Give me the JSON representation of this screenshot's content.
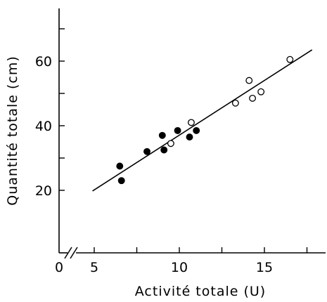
{
  "chart_data": {
    "type": "scatter",
    "title": "",
    "xlabel": "Activité totale  (U)",
    "ylabel": "Quantité totale  (cm)",
    "xlim": [
      4,
      19.5
    ],
    "ylim": [
      11,
      79
    ],
    "x_axis_break": true,
    "x_origin_label": "0",
    "xticks": [
      5,
      10,
      15
    ],
    "yticks": [
      20,
      40,
      60
    ],
    "x_minor_ticks": [
      7.5,
      12.5,
      17.5
    ],
    "y_minor_ticks": [
      30,
      50,
      70
    ],
    "grid": false,
    "series": [
      {
        "marker": "filled-circle",
        "points": [
          {
            "x": 6.5,
            "y": 27.5
          },
          {
            "x": 6.6,
            "y": 23.0
          },
          {
            "x": 8.1,
            "y": 32.0
          },
          {
            "x": 9.0,
            "y": 37.0
          },
          {
            "x": 9.1,
            "y": 32.5
          },
          {
            "x": 9.9,
            "y": 38.5
          },
          {
            "x": 10.6,
            "y": 36.5
          },
          {
            "x": 11.0,
            "y": 38.5
          }
        ]
      },
      {
        "marker": "open-circle",
        "points": [
          {
            "x": 9.5,
            "y": 34.5
          },
          {
            "x": 10.7,
            "y": 41.0
          },
          {
            "x": 13.3,
            "y": 47.0
          },
          {
            "x": 14.1,
            "y": 54.0
          },
          {
            "x": 14.3,
            "y": 48.5
          },
          {
            "x": 14.8,
            "y": 50.5
          },
          {
            "x": 16.5,
            "y": 60.5
          }
        ]
      }
    ],
    "fit_line": {
      "x": [
        4.9,
        17.8
      ],
      "y": [
        19.8,
        63.5
      ]
    }
  }
}
